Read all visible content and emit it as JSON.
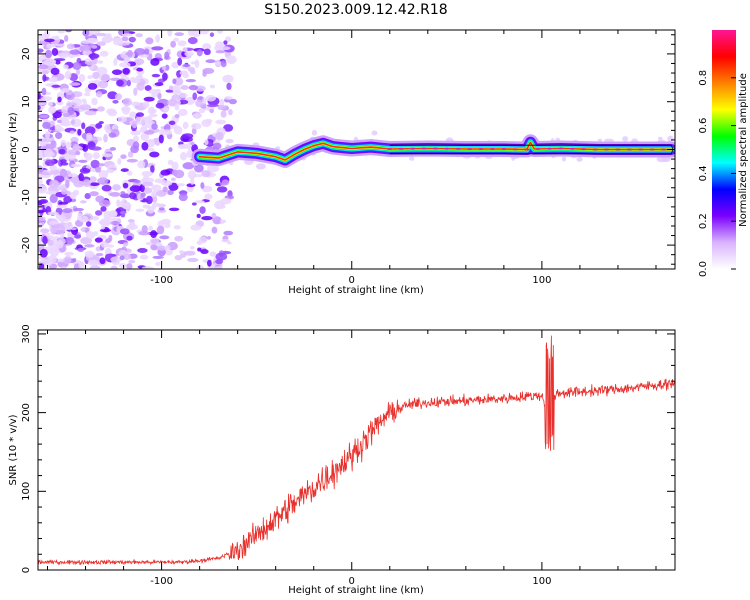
{
  "title": "S150.2023.009.12.42.R18",
  "chart_data": [
    {
      "type": "heatmap",
      "xlabel": "Height of straight line (km)",
      "ylabel": "Frequency (Hz)",
      "xlim": [
        -165,
        170
      ],
      "ylim": [
        -25,
        25
      ],
      "xticks": [
        -100,
        0,
        100
      ],
      "yticks": [
        -20,
        -10,
        0,
        10,
        20
      ],
      "colorbar": {
        "label": "Normalized spectral amplitude",
        "range": [
          0,
          1
        ],
        "ticks": [
          0.0,
          0.2,
          0.4,
          0.6,
          0.8
        ],
        "colors": [
          "#ffffff",
          "#d9b3ff",
          "#7a00ff",
          "#0000ff",
          "#00ffff",
          "#00ff00",
          "#ffff00",
          "#ff8000",
          "#ff0000",
          "#ff1493"
        ]
      },
      "noise_region_x": [
        -165,
        -70
      ],
      "ridge": {
        "x": [
          -80,
          -70,
          -60,
          -50,
          -40,
          -35,
          -30,
          -25,
          -20,
          -15,
          -10,
          -5,
          0,
          10,
          20,
          40,
          60,
          80,
          92,
          94,
          96,
          110,
          130,
          150,
          168
        ],
        "y": [
          -1.5,
          -1.8,
          -0.5,
          -0.8,
          -1.5,
          -2.2,
          -1.0,
          0.0,
          0.8,
          1.3,
          0.6,
          0.4,
          0.2,
          0.5,
          0.1,
          0.2,
          0.1,
          0.1,
          0.0,
          1.5,
          0.1,
          0.2,
          0.0,
          0.0,
          0.0
        ]
      }
    },
    {
      "type": "line",
      "xlabel": "Height of straight line (km)",
      "ylabel": "SNR (10 * v/v)",
      "xlim": [
        -165,
        170
      ],
      "ylim": [
        0,
        305
      ],
      "xticks": [
        -100,
        0,
        100
      ],
      "yticks": [
        0,
        100,
        200,
        300
      ],
      "line_color": "#e8302c",
      "series": [
        {
          "x": [
            -165,
            -150,
            -130,
            -110,
            -90,
            -80,
            -70,
            -60,
            -50,
            -40,
            -30,
            -20,
            -10,
            0,
            10,
            20,
            30,
            40,
            60,
            80,
            90,
            100,
            102,
            104,
            106,
            110,
            130,
            150,
            170
          ],
          "values": [
            10,
            10,
            10,
            10,
            10,
            12,
            15,
            25,
            45,
            65,
            85,
            105,
            125,
            145,
            175,
            200,
            210,
            213,
            215,
            218,
            220,
            222,
            210,
            230,
            222,
            225,
            228,
            232,
            238
          ]
        }
      ],
      "spike": {
        "x": 104,
        "peak": 305,
        "trough": 145
      }
    }
  ]
}
